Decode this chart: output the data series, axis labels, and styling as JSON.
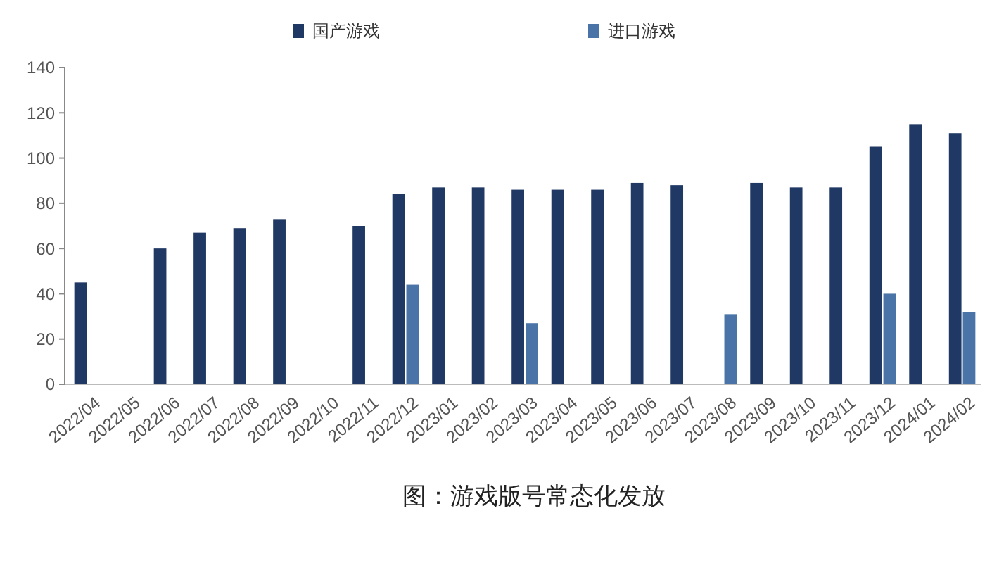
{
  "chart_data": {
    "type": "bar",
    "categories": [
      "2022/04",
      "2022/05",
      "2022/06",
      "2022/07",
      "2022/08",
      "2022/09",
      "2022/10",
      "2022/11",
      "2022/12",
      "2023/01",
      "2023/02",
      "2023/03",
      "2023/04",
      "2023/05",
      "2023/06",
      "2023/07",
      "2023/08",
      "2023/09",
      "2023/10",
      "2023/11",
      "2023/12",
      "2024/01",
      "2024/02"
    ],
    "series": [
      {
        "name": "国产游戏",
        "color": "#1f3864",
        "values": [
          45,
          null,
          60,
          67,
          69,
          73,
          null,
          70,
          84,
          87,
          87,
          86,
          86,
          86,
          89,
          88,
          null,
          89,
          87,
          87,
          105,
          115,
          111
        ]
      },
      {
        "name": "进口游戏",
        "color": "#4a74a8",
        "values": [
          null,
          null,
          null,
          null,
          null,
          null,
          null,
          null,
          44,
          null,
          null,
          27,
          null,
          null,
          null,
          null,
          31,
          null,
          null,
          null,
          40,
          null,
          32
        ]
      }
    ],
    "ylim": [
      0,
      140
    ],
    "yticks": [
      0,
      20,
      40,
      60,
      80,
      100,
      120,
      140
    ],
    "grid": false,
    "legend": "top",
    "annotations": [
      "图：游戏版号常态化发放"
    ]
  }
}
